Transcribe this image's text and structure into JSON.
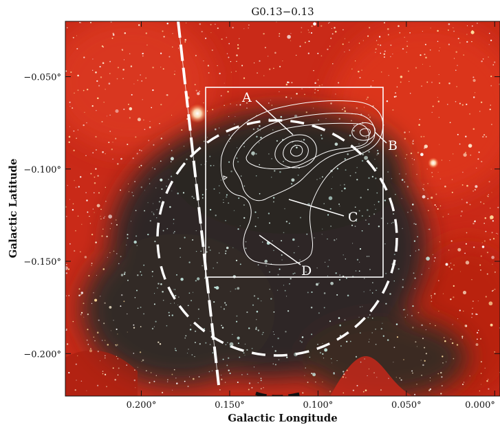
{
  "figure": {
    "title": "G0.13−0.13",
    "x_axis_label": "Galactic Longitude",
    "y_axis_label": "Galactic Latitude",
    "x_ticks": [
      {
        "value": 0.2,
        "label": "0.200°"
      },
      {
        "value": 0.15,
        "label": "0.150°"
      },
      {
        "value": 0.1,
        "label": "0.100°"
      },
      {
        "value": 0.05,
        "label": "0.050°"
      },
      {
        "value": 0.0,
        "label": "0.000°"
      }
    ],
    "y_ticks": [
      {
        "value": -0.05,
        "label": "−0.050°"
      },
      {
        "value": -0.1,
        "label": "−0.100°"
      },
      {
        "value": -0.15,
        "label": "−0.150°"
      },
      {
        "value": -0.2,
        "label": "−0.200°"
      }
    ],
    "x_range": [
      0.243,
      -0.003
    ],
    "y_range": [
      -0.223,
      -0.02
    ],
    "annotations": [
      {
        "id": "A",
        "label": "A"
      },
      {
        "id": "B",
        "label": "B"
      },
      {
        "id": "C",
        "label": "C"
      },
      {
        "id": "D",
        "label": "D"
      }
    ],
    "colors": {
      "nebula_red": "#d8301c",
      "dark_cloud": "#2b2622",
      "overlay": "#ffffff"
    }
  }
}
